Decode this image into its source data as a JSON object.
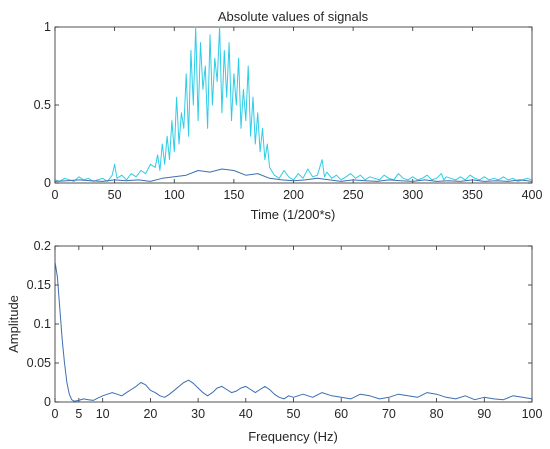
{
  "chart_data": [
    {
      "type": "line",
      "title": "Absolute values of signals",
      "xlabel": "Time (1/200*s)",
      "ylabel": "",
      "xlim": [
        0,
        400
      ],
      "ylim": [
        0,
        1
      ],
      "xticks": [
        "0",
        "50",
        "100",
        "150",
        "200",
        "250",
        "300",
        "350",
        "400"
      ],
      "yticks": [
        "0",
        "0.5",
        "1"
      ],
      "grid": false,
      "series": [
        {
          "color": "#2ecde6",
          "x": [
            0,
            4,
            8,
            12,
            16,
            20,
            24,
            28,
            32,
            36,
            40,
            44,
            48,
            50,
            52,
            56,
            60,
            64,
            68,
            72,
            76,
            80,
            84,
            86,
            88,
            90,
            92,
            94,
            96,
            98,
            100,
            102,
            104,
            106,
            108,
            110,
            112,
            114,
            116,
            118,
            120,
            122,
            124,
            126,
            128,
            130,
            132,
            134,
            136,
            138,
            140,
            142,
            144,
            146,
            148,
            150,
            152,
            154,
            156,
            158,
            160,
            162,
            164,
            166,
            168,
            170,
            172,
            174,
            176,
            178,
            180,
            184,
            188,
            192,
            196,
            200,
            204,
            208,
            212,
            216,
            220,
            224,
            226,
            228,
            232,
            236,
            240,
            244,
            248,
            252,
            256,
            260,
            264,
            268,
            272,
            276,
            280,
            284,
            288,
            292,
            296,
            300,
            304,
            308,
            312,
            316,
            320,
            324,
            326,
            328,
            332,
            336,
            340,
            344,
            348,
            352,
            356,
            360,
            364,
            368,
            372,
            376,
            380,
            384,
            388,
            392,
            396,
            400
          ],
          "y": [
            0.02,
            0.01,
            0.03,
            0.02,
            0.01,
            0.04,
            0.02,
            0.03,
            0.01,
            0.02,
            0.03,
            0.01,
            0.05,
            0.12,
            0.03,
            0.05,
            0.02,
            0.06,
            0.04,
            0.08,
            0.06,
            0.12,
            0.1,
            0.18,
            0.08,
            0.25,
            0.12,
            0.3,
            0.15,
            0.4,
            0.2,
            0.55,
            0.25,
            0.45,
            0.35,
            0.7,
            0.3,
            0.85,
            0.5,
            1.0,
            0.4,
            0.9,
            0.6,
            0.75,
            0.35,
            0.95,
            0.5,
            0.8,
            0.65,
            1.0,
            0.45,
            0.85,
            0.55,
            0.9,
            0.4,
            0.7,
            0.5,
            0.8,
            0.35,
            0.6,
            0.4,
            0.75,
            0.3,
            0.55,
            0.25,
            0.45,
            0.2,
            0.35,
            0.15,
            0.25,
            0.1,
            0.05,
            0.03,
            0.08,
            0.04,
            0.02,
            0.06,
            0.03,
            0.09,
            0.04,
            0.05,
            0.15,
            0.04,
            0.07,
            0.03,
            0.05,
            0.02,
            0.04,
            0.06,
            0.03,
            0.05,
            0.02,
            0.04,
            0.03,
            0.02,
            0.05,
            0.03,
            0.02,
            0.06,
            0.03,
            0.02,
            0.04,
            0.02,
            0.03,
            0.05,
            0.02,
            0.03,
            0.06,
            0.02,
            0.04,
            0.03,
            0.02,
            0.04,
            0.02,
            0.05,
            0.03,
            0.02,
            0.04,
            0.02,
            0.03,
            0.02,
            0.04,
            0.02,
            0.03,
            0.01,
            0.02,
            0.03,
            0.02
          ]
        },
        {
          "color": "#3d6fb0",
          "x": [
            0,
            10,
            20,
            30,
            40,
            50,
            60,
            70,
            80,
            90,
            100,
            110,
            120,
            130,
            140,
            150,
            160,
            170,
            180,
            190,
            200,
            210,
            220,
            230,
            240,
            250,
            260,
            270,
            280,
            290,
            300,
            310,
            320,
            330,
            340,
            350,
            360,
            370,
            380,
            390,
            400
          ],
          "y": [
            0.01,
            0.015,
            0.02,
            0.015,
            0.01,
            0.02,
            0.015,
            0.02,
            0.01,
            0.03,
            0.04,
            0.05,
            0.08,
            0.07,
            0.09,
            0.08,
            0.05,
            0.06,
            0.03,
            0.02,
            0.015,
            0.02,
            0.03,
            0.02,
            0.01,
            0.02,
            0.015,
            0.01,
            0.02,
            0.015,
            0.01,
            0.02,
            0.01,
            0.015,
            0.01,
            0.02,
            0.01,
            0.015,
            0.01,
            0.02,
            0.01
          ]
        }
      ]
    },
    {
      "type": "line",
      "title": "",
      "xlabel": "Frequency (Hz)",
      "ylabel": "Amplitude",
      "xlim": [
        0,
        100
      ],
      "ylim": [
        0,
        0.2
      ],
      "xticks": [
        "0",
        "5",
        "10",
        "20",
        "30",
        "40",
        "50",
        "60",
        "70",
        "80",
        "90",
        "100"
      ],
      "yticks": [
        "0",
        "0.05",
        "0.1",
        "0.15",
        "0.2"
      ],
      "grid": false,
      "series": [
        {
          "color": "#3d6fb0",
          "x": [
            0,
            0.5,
            1,
            1.5,
            2,
            2.5,
            3,
            3.5,
            4,
            5,
            6,
            7,
            8,
            9,
            10,
            11,
            12,
            13,
            14,
            15,
            16,
            17,
            18,
            19,
            20,
            21,
            22,
            23,
            24,
            25,
            26,
            27,
            28,
            29,
            30,
            31,
            32,
            33,
            34,
            35,
            36,
            37,
            38,
            39,
            40,
            41,
            42,
            43,
            44,
            45,
            46,
            47,
            48,
            49,
            50,
            52,
            54,
            56,
            58,
            60,
            62,
            64,
            66,
            68,
            70,
            72,
            74,
            76,
            78,
            80,
            82,
            84,
            86,
            88,
            90,
            92,
            94,
            96,
            98,
            100
          ],
          "y": [
            0.18,
            0.16,
            0.12,
            0.08,
            0.05,
            0.025,
            0.01,
            0.003,
            0.001,
            0.002,
            0.004,
            0.003,
            0.002,
            0.005,
            0.008,
            0.01,
            0.012,
            0.01,
            0.008,
            0.012,
            0.016,
            0.02,
            0.025,
            0.022,
            0.015,
            0.012,
            0.008,
            0.006,
            0.01,
            0.015,
            0.02,
            0.025,
            0.028,
            0.024,
            0.018,
            0.012,
            0.008,
            0.012,
            0.018,
            0.02,
            0.016,
            0.012,
            0.014,
            0.018,
            0.02,
            0.016,
            0.012,
            0.016,
            0.02,
            0.016,
            0.01,
            0.006,
            0.004,
            0.008,
            0.006,
            0.01,
            0.006,
            0.012,
            0.008,
            0.006,
            0.004,
            0.01,
            0.008,
            0.004,
            0.006,
            0.01,
            0.008,
            0.006,
            0.012,
            0.01,
            0.006,
            0.004,
            0.008,
            0.003,
            0.006,
            0.004,
            0.003,
            0.008,
            0.006,
            0.004
          ]
        }
      ]
    }
  ]
}
